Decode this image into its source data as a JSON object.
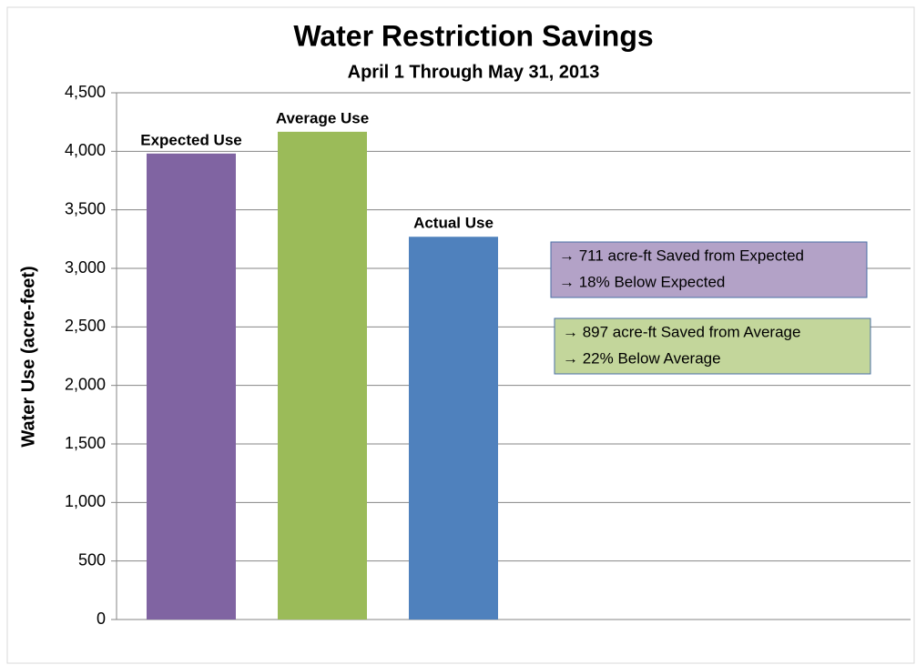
{
  "chart_data": {
    "type": "bar",
    "title": "Water Restriction Savings",
    "subtitle": "April 1 Through May 31, 2013",
    "y_label": "Water Use (acre-feet)",
    "categories": [
      "Expected Use",
      "Average Use",
      "Actual Use"
    ],
    "values": [
      3981,
      4167,
      3270
    ],
    "colors": [
      "#8064a2",
      "#9bbb59",
      "#4f81bd"
    ],
    "ylim": [
      0,
      4500
    ],
    "yticks": [
      0,
      500,
      {
        "value": 1000,
        "label": "1,000"
      },
      {
        "value": 1500,
        "label": "1,500"
      },
      {
        "value": 2000,
        "label": "2,000"
      },
      {
        "value": 2500,
        "label": "2,500"
      },
      {
        "value": 3000,
        "label": "3,000"
      },
      {
        "value": 3500,
        "label": "3,500"
      },
      {
        "value": 4000,
        "label": "4,000"
      },
      {
        "value": 4500,
        "label": "4,500"
      }
    ],
    "grid": true,
    "annotations": [
      {
        "lines": [
          "→  711 acre-ft Saved from Expected",
          "→  18% Below Expected"
        ],
        "color": "#b3a2c7"
      },
      {
        "lines": [
          "→  897 acre-ft Saved from Average",
          "→  22% Below Average"
        ],
        "color": "#c3d69b"
      }
    ]
  }
}
